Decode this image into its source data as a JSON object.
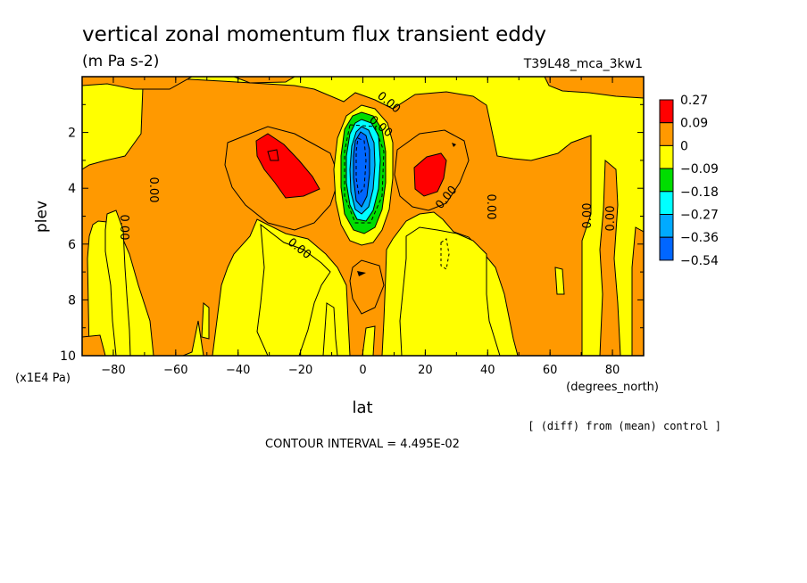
{
  "chart_data": {
    "type": "contour",
    "title": "vertical zonal momentum flux transient eddy",
    "subtitle": "(m Pa s-2)",
    "run_label": "T39L48_mca_3kw1",
    "xlabel": "lat",
    "x_units": "(degrees_north)",
    "ylabel": "plev",
    "y_units": "(x1E4 Pa)",
    "xlim": [
      -90,
      90
    ],
    "ylim": [
      0,
      10
    ],
    "y_reversed": true,
    "xticks": [
      -80,
      -60,
      -40,
      -20,
      0,
      20,
      40,
      60,
      80
    ],
    "yticks": [
      2,
      4,
      6,
      8,
      10
    ],
    "legend_position": "right",
    "legend": {
      "levels": [
        "0.27",
        "0.09",
        "0",
        "-0.09",
        "-0.18",
        "-0.27",
        "-0.36",
        "-0.54"
      ],
      "colors": [
        "#ff0000",
        "#ff9900",
        "#ffff00",
        "#00dd00",
        "#00ffff",
        "#00aaff",
        "#0066ff"
      ]
    },
    "contour_labels": [
      "0.00",
      "0.00",
      "0.00",
      "0.00",
      "0.00",
      "0.00",
      "0.00",
      "0.00",
      "0.00"
    ],
    "diff_note": "[ (diff) from (mean) control ]",
    "contour_interval": "CONTOUR INTERVAL = 4.495E-02"
  }
}
